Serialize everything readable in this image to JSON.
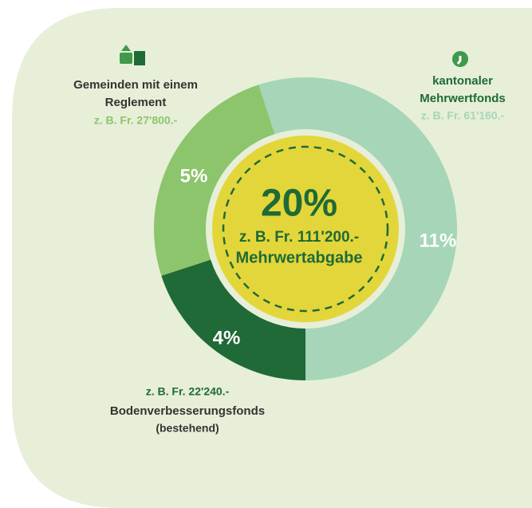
{
  "chart_data": {
    "type": "pie",
    "categories": [
      [
        "kantonaler",
        "Mehrwertfonds"
      ],
      [
        "Bodenverbesserungsfonds"
      ],
      [
        "Gemeinden mit einem",
        "Reglement"
      ]
    ],
    "values": [
      11,
      4,
      5
    ],
    "value_labels": [
      "11%",
      "4%",
      "5%"
    ],
    "colors": [
      "#a6d5b8",
      "#1f6a36",
      "#8cc56c"
    ],
    "examples": [
      "z. B. Fr. 61'160.-",
      "z. B. Fr. 22'240.-",
      "z. B. Fr. 27'800.-"
    ],
    "example_colors": [
      "#a6d5b8",
      "#1f6a36",
      "#8cc56c"
    ],
    "annotations": [
      "(bestehend)"
    ],
    "center": {
      "value": 20,
      "value_label": "20%",
      "example": "z. B. Fr. 111'200.-",
      "label": "Mehrwertabgabe",
      "color": "#e3d63a"
    }
  }
}
